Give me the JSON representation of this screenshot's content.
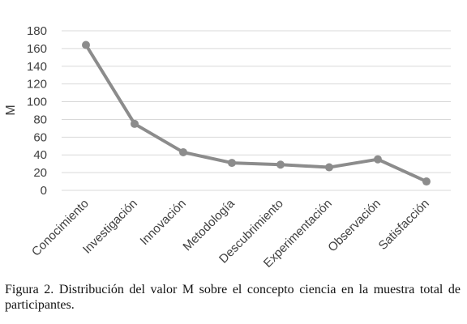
{
  "chart_data": {
    "type": "line",
    "categories": [
      "Conocimiento",
      "Investigación",
      "Innovación",
      "Metodología",
      "Descubrimiento",
      "Experimentación",
      "Observación",
      "Satisfacción"
    ],
    "series": [
      {
        "values": [
          164,
          75,
          43,
          31,
          29,
          26,
          35,
          10
        ]
      }
    ],
    "ylabel": "M",
    "ylim": [
      0,
      180
    ],
    "yticks": [
      0,
      20,
      40,
      60,
      80,
      100,
      120,
      140,
      160,
      180
    ],
    "grid": true,
    "line_color": "#8c8c8c",
    "grid_color": "#d9d9d9"
  },
  "caption": "Figura 2. Distribución del valor M sobre el concepto ciencia en la muestra total de participantes."
}
